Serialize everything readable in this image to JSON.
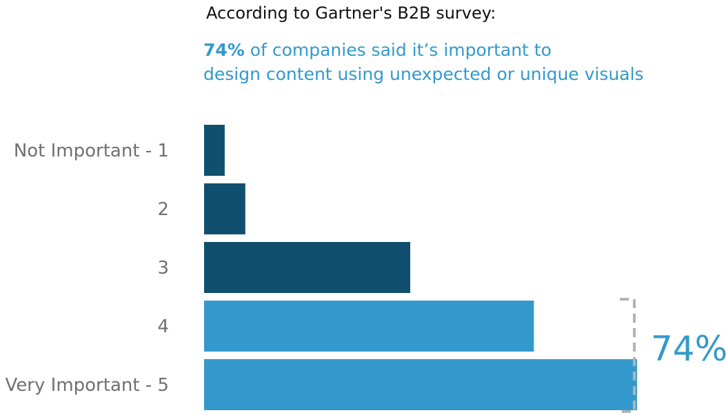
{
  "heading": "According to Gartner's B2B survey:",
  "subtitle": {
    "highlight": "74%",
    "line1_rest": " of companies said it’s important to",
    "line2": "design content using unexpected or unique visuals"
  },
  "colors": {
    "dark": "#10506e",
    "light": "#3399cc",
    "bracket": "#b3b3b3",
    "label": "#707070"
  },
  "chart_data": {
    "type": "bar",
    "orientation": "horizontal",
    "categories": [
      "Not Important - 1",
      "2",
      "3",
      "4",
      "Very Important - 5"
    ],
    "values": [
      2,
      4,
      20,
      32,
      42
    ],
    "highlight_categories": [
      "4",
      "Very Important - 5"
    ],
    "bracket_label": "74%",
    "xlim": [
      0,
      42
    ],
    "grid": false,
    "legend": "none"
  }
}
